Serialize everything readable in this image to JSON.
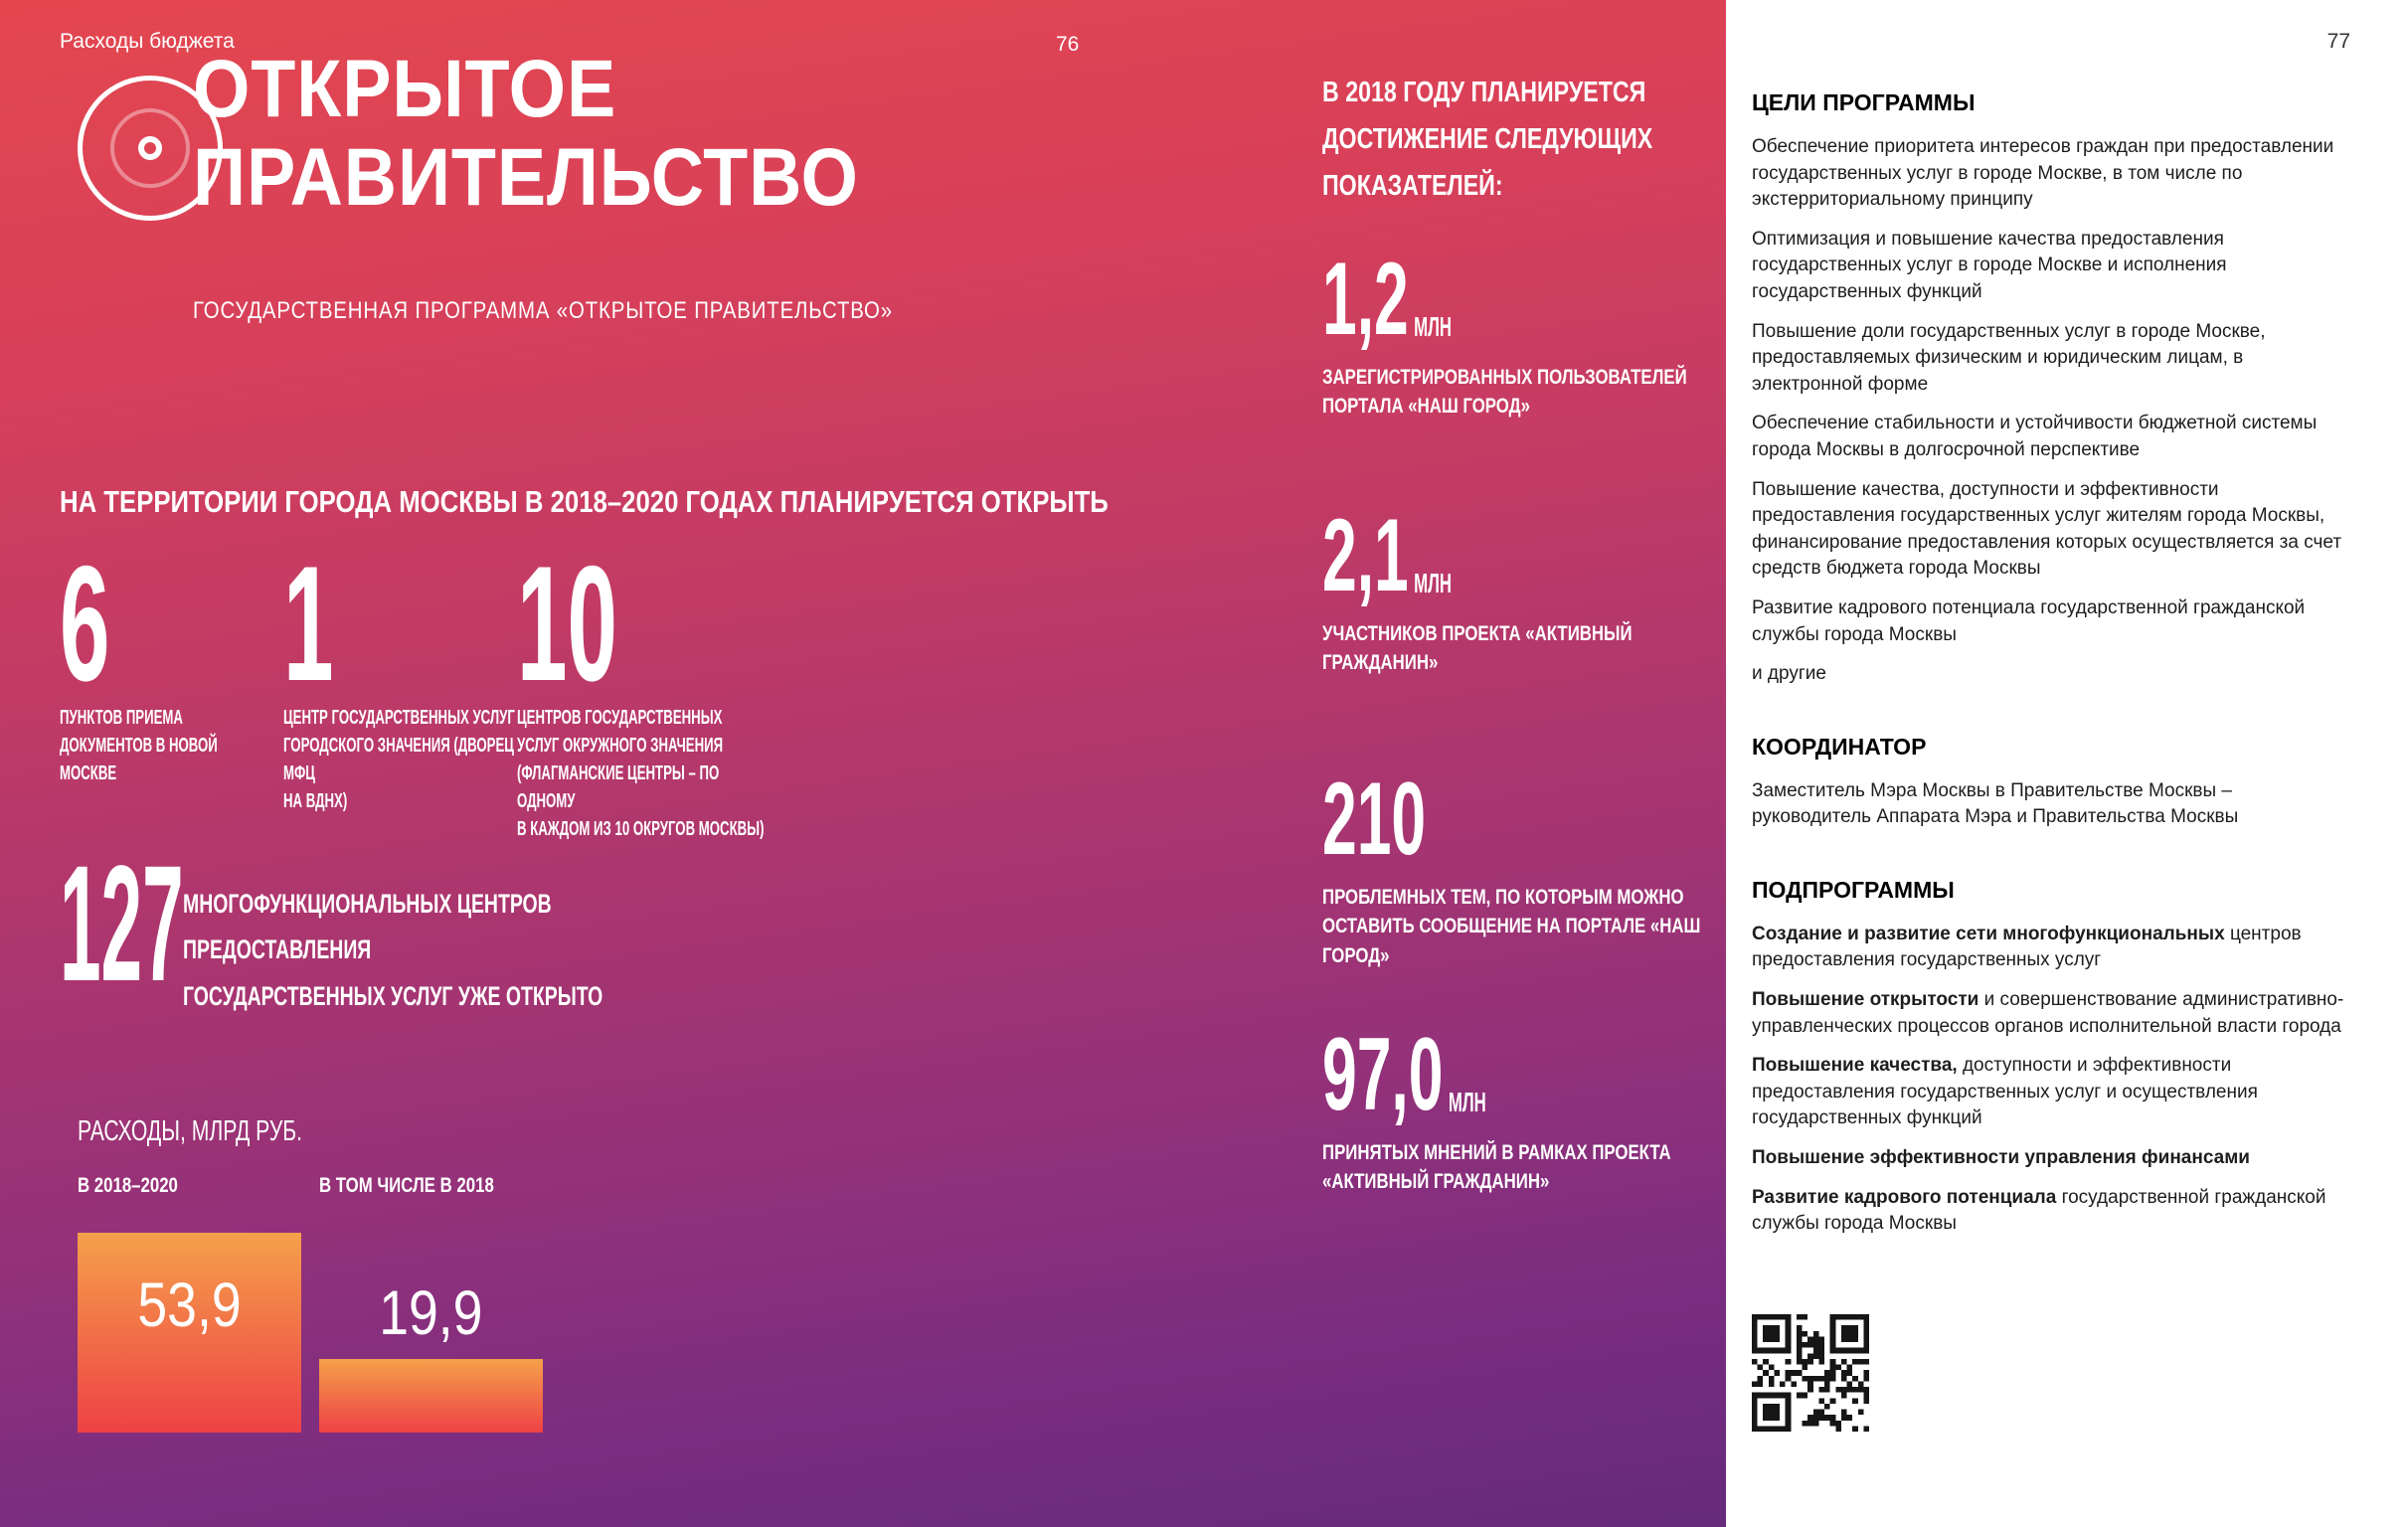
{
  "colors": {
    "gradient_top": "#e4474f",
    "gradient_bottom": "#652a7a",
    "bar_gradient_top": "#f5a04b",
    "bar_gradient_bottom": "#ee4145",
    "text_on_gradient": "#ffffff",
    "panel_background": "#ffffff",
    "panel_text": "#1d1d1b"
  },
  "left_page": {
    "breadcrumb": "Расходы бюджета",
    "page_number": "76",
    "logo_icon": "concentric-rings-logo",
    "title_line1": "ОТКРЫТОЕ",
    "title_line2": "ПРАВИТЕЛЬСТВО",
    "subtitle": "ГОСУДАРСТВЕННАЯ ПРОГРАММА «ОТКРЫТОЕ ПРАВИТЕЛЬСТВО»",
    "section_heading": "НА ТЕРРИТОРИИ ГОРОДА МОСКВЫ В 2018–2020 ГОДАХ ПЛАНИРУЕТСЯ ОТКРЫТЬ",
    "stats": [
      {
        "value": "6",
        "label": "ПУНКТОВ ПРИЕМА\nДОКУМЕНТОВ В НОВОЙ\nМОСКВЕ"
      },
      {
        "value": "1",
        "label": "ЦЕНТР ГОСУДАРСТВЕННЫХ УСЛУГ\nГОРОДСКОГО ЗНАЧЕНИЯ (ДВОРЕЦ МФЦ\nНА ВДНХ)"
      },
      {
        "value": "10",
        "label": "ЦЕНТРОВ ГОСУДАРСТВЕННЫХ\nУСЛУГ ОКРУЖНОГО ЗНАЧЕНИЯ\n(ФЛАГМАНСКИЕ ЦЕНТРЫ – ПО ОДНОМУ\nВ КАЖДОМ ИЗ 10 ОКРУГОВ МОСКВЫ)"
      }
    ],
    "highlight": {
      "value": "127",
      "label": "МНОГОФУНКЦИОНАЛЬНЫХ ЦЕНТРОВ ПРЕДОСТАВЛЕНИЯ\nГОСУДАРСТВЕННЫХ УСЛУГ УЖЕ ОТКРЫТО"
    }
  },
  "chart_data": {
    "type": "bar",
    "title": "РАСХОДЫ, МЛРД РУБ.",
    "categories": [
      "В 2018–2020",
      "В ТОМ ЧИСЛЕ В 2018"
    ],
    "values": [
      53.9,
      19.9
    ],
    "value_labels": [
      "53,9",
      "19,9"
    ],
    "ylabel": "млрд руб.",
    "ylim": [
      0,
      54
    ],
    "grid": false,
    "legend": false
  },
  "indicators": {
    "heading": "В 2018 ГОДУ ПЛАНИРУЕТСЯ\nДОСТИЖЕНИЕ СЛЕДУЮЩИХ\nПОКАЗАТЕЛЕЙ:",
    "items": [
      {
        "value": "1,2",
        "unit": "МЛН",
        "label": "ЗАРЕГИСТРИРОВАННЫХ ПОЛЬЗОВАТЕЛЕЙ\nПОРТАЛА «НАШ ГОРОД»"
      },
      {
        "value": "2,1",
        "unit": "МЛН",
        "label": "УЧАСТНИКОВ ПРОЕКТА «АКТИВНЫЙ\nГРАЖДАНИН»"
      },
      {
        "value": "210",
        "unit": "",
        "label": "ПРОБЛЕМНЫХ ТЕМ, ПО КОТОРЫМ МОЖНО\nОСТАВИТЬ СООБЩЕНИЕ НА ПОРТАЛЕ «НАШ\nГОРОД»"
      },
      {
        "value": "97,0",
        "unit": "МЛН",
        "label": "ПРИНЯТЫХ МНЕНИЙ В РАМКАХ ПРОЕКТА\n«АКТИВНЫЙ ГРАЖДАНИН»"
      }
    ]
  },
  "right_page": {
    "page_number": "77",
    "goals_heading": "ЦЕЛИ ПРОГРАММЫ",
    "goals": [
      "Обеспечение приоритета интересов граждан при предоставлении государственных услуг в городе Москве, в том числе по экстерриториальному принципу",
      "Оптимизация и повышение качества предоставления государственных услуг в городе Москве и исполнения государственных функций",
      "Повышение доли государственных услуг в городе Москве, предоставляемых физическим и юридическим лицам, в электронной форме",
      "Обеспечение стабильности и устойчивости бюджетной системы города Москвы в долгосрочной перспективе",
      "Повышение качества, доступности и эффективности предоставления государственных услуг жителям города Москвы, финансирование предоставления которых осуществляется за счет средств бюджета города Москвы",
      "Развитие кадрового потенциала государственной гражданской службы города Москвы",
      "и другие"
    ],
    "coordinator_heading": "КООРДИНАТОР",
    "coordinator": "Заместитель Мэра Москвы в Правительстве Москвы – руководитель Аппарата Мэра и Правительства Москвы",
    "subprograms_heading": "ПОДПРОГРАММЫ",
    "subprograms": [
      {
        "bold": "Создание и развитие сети многофункциональных",
        "rest": " центров предоставления государственных услуг"
      },
      {
        "bold": "Повышение открытости",
        "rest": " и совершенствование административно-управленческих процессов органов исполнительной власти города"
      },
      {
        "bold": "Повышение качества,",
        "rest": " доступности и эффективности предоставления государственных услуг и осуществления государственных функций"
      },
      {
        "bold": "Повышение эффективности управления финансами",
        "rest": ""
      },
      {
        "bold": "Развитие кадрового потенциала",
        "rest": " государственной гражданской службы города Москвы"
      }
    ],
    "qr_icon": "qr-code"
  }
}
